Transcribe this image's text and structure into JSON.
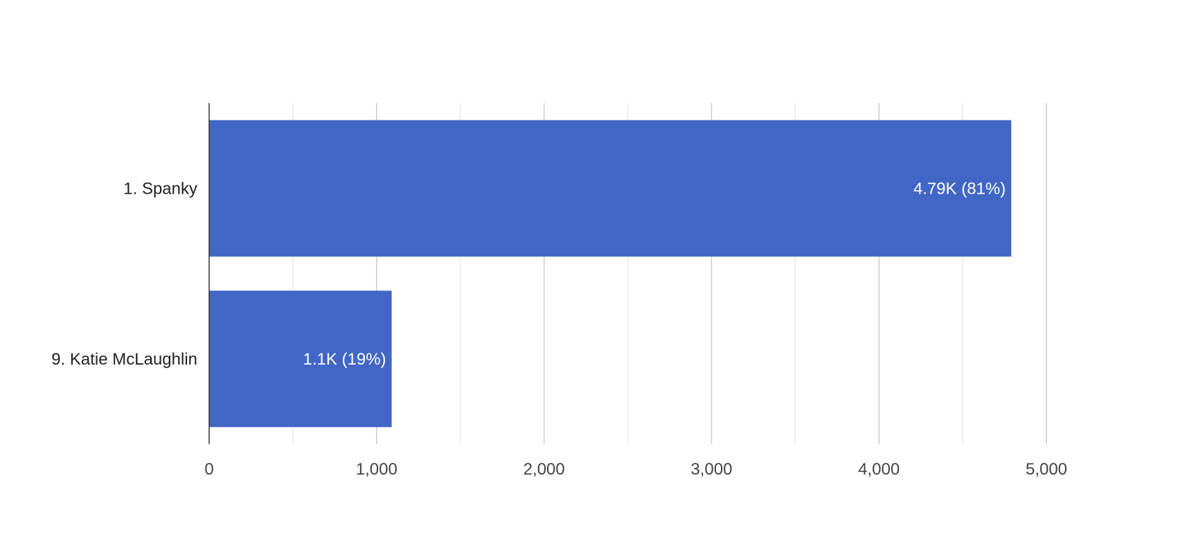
{
  "chart_data": {
    "type": "bar",
    "orientation": "horizontal",
    "categories": [
      "1. Spanky",
      "9. Katie McLaughlin"
    ],
    "values": [
      4790,
      1090
    ],
    "data_labels": [
      "4.79K (81%)",
      "1.1K (19%)"
    ],
    "xlim": [
      0,
      5000
    ],
    "x_ticks": [
      0,
      1000,
      2000,
      3000,
      4000,
      5000
    ],
    "x_tick_labels": [
      "0",
      "1,000",
      "2,000",
      "3,000",
      "4,000",
      "5,000"
    ],
    "minor_ticks": [
      500,
      1500,
      2500,
      3500,
      4500
    ],
    "grid": true,
    "legend": "none",
    "bar_color": "#4166c5"
  }
}
